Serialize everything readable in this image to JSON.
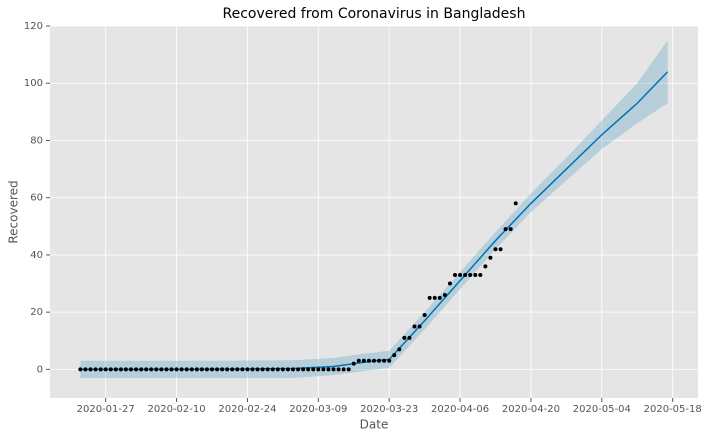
{
  "chart_data": {
    "type": "forecast",
    "title": "Recovered from Coronavirus in Bangladesh",
    "x_label": "Date",
    "y_label": "Recovered",
    "xlim": [
      "2020-01-16",
      "2020-05-23"
    ],
    "ylim": [
      -10,
      120
    ],
    "xticks": [
      "2020-01-27",
      "2020-02-10",
      "2020-02-24",
      "2020-03-09",
      "2020-03-23",
      "2020-04-06",
      "2020-04-20",
      "2020-05-04",
      "2020-05-18"
    ],
    "yticks": [
      0,
      20,
      40,
      60,
      80,
      100,
      120
    ],
    "grid": true,
    "points": {
      "color": "#000000",
      "x": [
        "2020-01-22",
        "2020-01-23",
        "2020-01-24",
        "2020-01-25",
        "2020-01-26",
        "2020-01-27",
        "2020-01-28",
        "2020-01-29",
        "2020-01-30",
        "2020-01-31",
        "2020-02-01",
        "2020-02-02",
        "2020-02-03",
        "2020-02-04",
        "2020-02-05",
        "2020-02-06",
        "2020-02-07",
        "2020-02-08",
        "2020-02-09",
        "2020-02-10",
        "2020-02-11",
        "2020-02-12",
        "2020-02-13",
        "2020-02-14",
        "2020-02-15",
        "2020-02-16",
        "2020-02-17",
        "2020-02-18",
        "2020-02-19",
        "2020-02-20",
        "2020-02-21",
        "2020-02-22",
        "2020-02-23",
        "2020-02-24",
        "2020-02-25",
        "2020-02-26",
        "2020-02-27",
        "2020-02-28",
        "2020-02-29",
        "2020-03-01",
        "2020-03-02",
        "2020-03-03",
        "2020-03-04",
        "2020-03-05",
        "2020-03-06",
        "2020-03-07",
        "2020-03-08",
        "2020-03-09",
        "2020-03-10",
        "2020-03-11",
        "2020-03-12",
        "2020-03-13",
        "2020-03-14",
        "2020-03-15",
        "2020-03-16",
        "2020-03-17",
        "2020-03-18",
        "2020-03-19",
        "2020-03-20",
        "2020-03-21",
        "2020-03-22",
        "2020-03-23",
        "2020-03-24",
        "2020-03-25",
        "2020-03-26",
        "2020-03-27",
        "2020-03-28",
        "2020-03-29",
        "2020-03-30",
        "2020-03-31",
        "2020-04-01",
        "2020-04-02",
        "2020-04-03",
        "2020-04-04",
        "2020-04-05",
        "2020-04-06",
        "2020-04-07",
        "2020-04-08",
        "2020-04-09",
        "2020-04-10",
        "2020-04-11",
        "2020-04-12",
        "2020-04-13",
        "2020-04-14",
        "2020-04-15",
        "2020-04-16",
        "2020-04-17"
      ],
      "values": [
        0,
        0,
        0,
        0,
        0,
        0,
        0,
        0,
        0,
        0,
        0,
        0,
        0,
        0,
        0,
        0,
        0,
        0,
        0,
        0,
        0,
        0,
        0,
        0,
        0,
        0,
        0,
        0,
        0,
        0,
        0,
        0,
        0,
        0,
        0,
        0,
        0,
        0,
        0,
        0,
        0,
        0,
        0,
        0,
        0,
        0,
        0,
        0,
        0,
        0,
        0,
        0,
        0,
        0,
        2,
        3,
        3,
        3,
        3,
        3,
        3,
        3,
        5,
        7,
        11,
        11,
        15,
        15,
        19,
        25,
        25,
        25,
        26,
        30,
        33,
        33,
        33,
        33,
        33,
        33,
        36,
        39,
        42,
        42,
        49,
        49,
        58
      ]
    },
    "forecast": {
      "color": "#0072B2",
      "x": [
        "2020-01-22",
        "2020-02-05",
        "2020-02-19",
        "2020-03-04",
        "2020-03-12",
        "2020-03-18",
        "2020-03-23",
        "2020-03-30",
        "2020-04-06",
        "2020-04-13",
        "2020-04-20",
        "2020-04-27",
        "2020-05-04",
        "2020-05-11",
        "2020-05-17"
      ],
      "values": [
        0,
        0,
        0.1,
        0.3,
        1,
        2.5,
        3.5,
        17,
        31,
        45,
        58,
        70,
        82,
        93,
        104
      ],
      "lower": [
        -3,
        -3,
        -3,
        -3,
        -2,
        -0.5,
        0.5,
        14,
        28,
        42,
        55,
        66,
        77,
        86,
        93
      ],
      "upper": [
        3,
        3,
        3,
        3.2,
        4,
        5.5,
        6.5,
        20,
        34,
        48,
        61.5,
        74,
        87,
        100,
        115
      ]
    }
  }
}
